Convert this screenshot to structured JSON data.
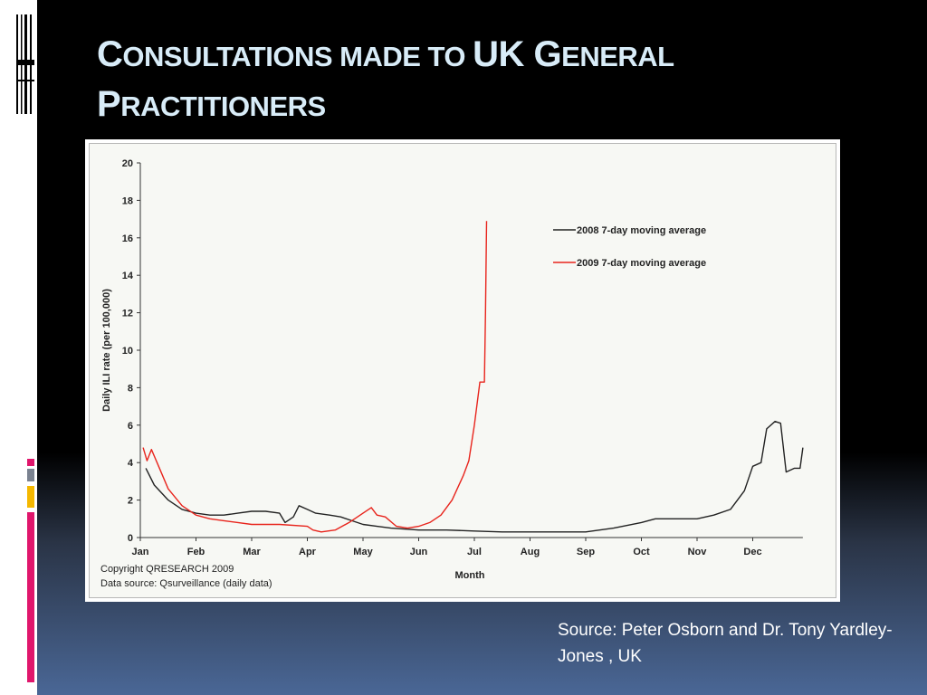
{
  "title": {
    "line1": [
      {
        "big": "C",
        "small": "ONSULTATIONS MADE TO "
      },
      {
        "big": "UK G",
        "small": "ENERAL"
      }
    ],
    "line2": [
      {
        "big": "P",
        "small": "RACTITIONERS"
      }
    ]
  },
  "source": "Source: Peter Osborn and Dr. Tony Yardley-Jones , UK",
  "chart_data": {
    "type": "line",
    "xlabel": "Month",
    "ylabel": "Daily ILI rate (per 100,000)",
    "ylim": [
      0,
      20
    ],
    "yticks": [
      "0",
      "2",
      "4",
      "6",
      "8",
      "10",
      "12",
      "14",
      "16",
      "18",
      "20"
    ],
    "categories": [
      "Jan",
      "Feb",
      "Mar",
      "Apr",
      "May",
      "Jun",
      "Jul",
      "Aug",
      "Sep",
      "Oct",
      "Nov",
      "Dec"
    ],
    "legend_position": "top-right",
    "copyright": "Copyright QRESEARCH 2009",
    "data_source": "Data source: Qsurveillance (daily data)",
    "series": [
      {
        "name": "2008 7-day moving average",
        "color": "#222222",
        "points": [
          [
            0.1,
            3.7
          ],
          [
            0.25,
            2.8
          ],
          [
            0.5,
            2.0
          ],
          [
            0.75,
            1.5
          ],
          [
            1.0,
            1.3
          ],
          [
            1.25,
            1.2
          ],
          [
            1.5,
            1.2
          ],
          [
            1.75,
            1.3
          ],
          [
            2.0,
            1.4
          ],
          [
            2.25,
            1.4
          ],
          [
            2.5,
            1.3
          ],
          [
            2.6,
            0.8
          ],
          [
            2.75,
            1.1
          ],
          [
            2.85,
            1.7
          ],
          [
            3.0,
            1.5
          ],
          [
            3.15,
            1.3
          ],
          [
            3.4,
            1.2
          ],
          [
            3.6,
            1.1
          ],
          [
            3.8,
            0.9
          ],
          [
            4.0,
            0.7
          ],
          [
            4.25,
            0.6
          ],
          [
            4.5,
            0.5
          ],
          [
            5.0,
            0.4
          ],
          [
            5.5,
            0.4
          ],
          [
            6.0,
            0.35
          ],
          [
            6.5,
            0.3
          ],
          [
            7.0,
            0.3
          ],
          [
            7.5,
            0.3
          ],
          [
            8.0,
            0.3
          ],
          [
            8.5,
            0.5
          ],
          [
            9.0,
            0.8
          ],
          [
            9.25,
            1.0
          ],
          [
            9.5,
            1.0
          ],
          [
            10.0,
            1.0
          ],
          [
            10.3,
            1.2
          ],
          [
            10.6,
            1.5
          ],
          [
            10.85,
            2.5
          ],
          [
            11.0,
            3.8
          ],
          [
            11.15,
            4.0
          ],
          [
            11.25,
            5.8
          ],
          [
            11.4,
            6.2
          ],
          [
            11.5,
            6.1
          ],
          [
            11.6,
            3.5
          ],
          [
            11.75,
            3.7
          ],
          [
            11.85,
            3.7
          ],
          [
            11.9,
            4.8
          ]
        ]
      },
      {
        "name": "2009 7-day moving average",
        "color": "#e8241c",
        "points": [
          [
            0.05,
            4.8
          ],
          [
            0.12,
            4.1
          ],
          [
            0.2,
            4.7
          ],
          [
            0.3,
            4.0
          ],
          [
            0.5,
            2.6
          ],
          [
            0.75,
            1.7
          ],
          [
            1.0,
            1.2
          ],
          [
            1.25,
            1.0
          ],
          [
            1.5,
            0.9
          ],
          [
            1.75,
            0.8
          ],
          [
            2.0,
            0.7
          ],
          [
            2.5,
            0.7
          ],
          [
            3.0,
            0.6
          ],
          [
            3.1,
            0.4
          ],
          [
            3.25,
            0.3
          ],
          [
            3.5,
            0.4
          ],
          [
            3.75,
            0.8
          ],
          [
            3.9,
            1.1
          ],
          [
            4.0,
            1.3
          ],
          [
            4.15,
            1.6
          ],
          [
            4.25,
            1.2
          ],
          [
            4.4,
            1.1
          ],
          [
            4.6,
            0.6
          ],
          [
            4.8,
            0.5
          ],
          [
            5.0,
            0.6
          ],
          [
            5.2,
            0.8
          ],
          [
            5.4,
            1.2
          ],
          [
            5.6,
            2.0
          ],
          [
            5.8,
            3.3
          ],
          [
            5.9,
            4.1
          ],
          [
            6.0,
            6.0
          ],
          [
            6.1,
            8.3
          ],
          [
            6.18,
            8.3
          ],
          [
            6.2,
            12.0
          ],
          [
            6.22,
            16.9
          ]
        ]
      }
    ]
  }
}
